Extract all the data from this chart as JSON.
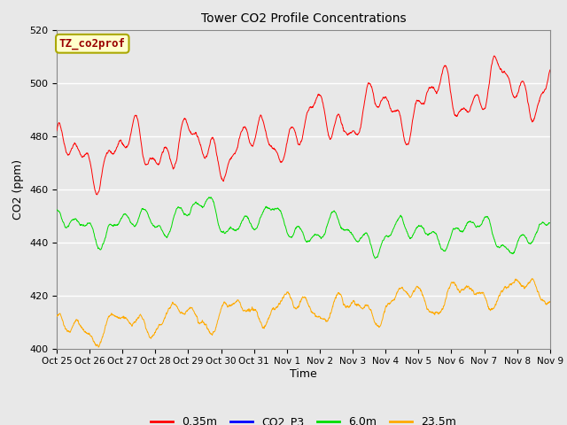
{
  "title": "Tower CO2 Profile Concentrations",
  "xlabel": "Time",
  "ylabel": "CO2 (ppm)",
  "ylim": [
    400,
    520
  ],
  "yticks": [
    400,
    420,
    440,
    460,
    480,
    500,
    520
  ],
  "background_color": "#e8e8e8",
  "plot_bg_color": "#e8e8e8",
  "annotation_text": "TZ_co2prof",
  "annotation_bg": "#ffffcc",
  "annotation_edge": "#cccc00",
  "annotation_text_color": "#990000",
  "legend_labels": [
    "0.35m",
    "CO2_P3",
    "6.0m",
    "23.5m"
  ],
  "legend_colors": [
    "#ff0000",
    "#0000ff",
    "#00dd00",
    "#ffaa00"
  ],
  "line_colors": {
    "red_line": "#ff0000",
    "blue_line": "#0000ff",
    "green_line": "#00dd00",
    "orange_line": "#ffaa00"
  },
  "xtick_labels": [
    "Oct 25",
    "Oct 26",
    "Oct 27",
    "Oct 28",
    "Oct 29",
    "Oct 30",
    "Oct 31",
    "Nov 1",
    "Nov 2",
    "Nov 3",
    "Nov 4",
    "Nov 5",
    "Nov 6",
    "Nov 7",
    "Nov 8",
    "Nov 9"
  ],
  "n_points": 2000,
  "seed": 42
}
